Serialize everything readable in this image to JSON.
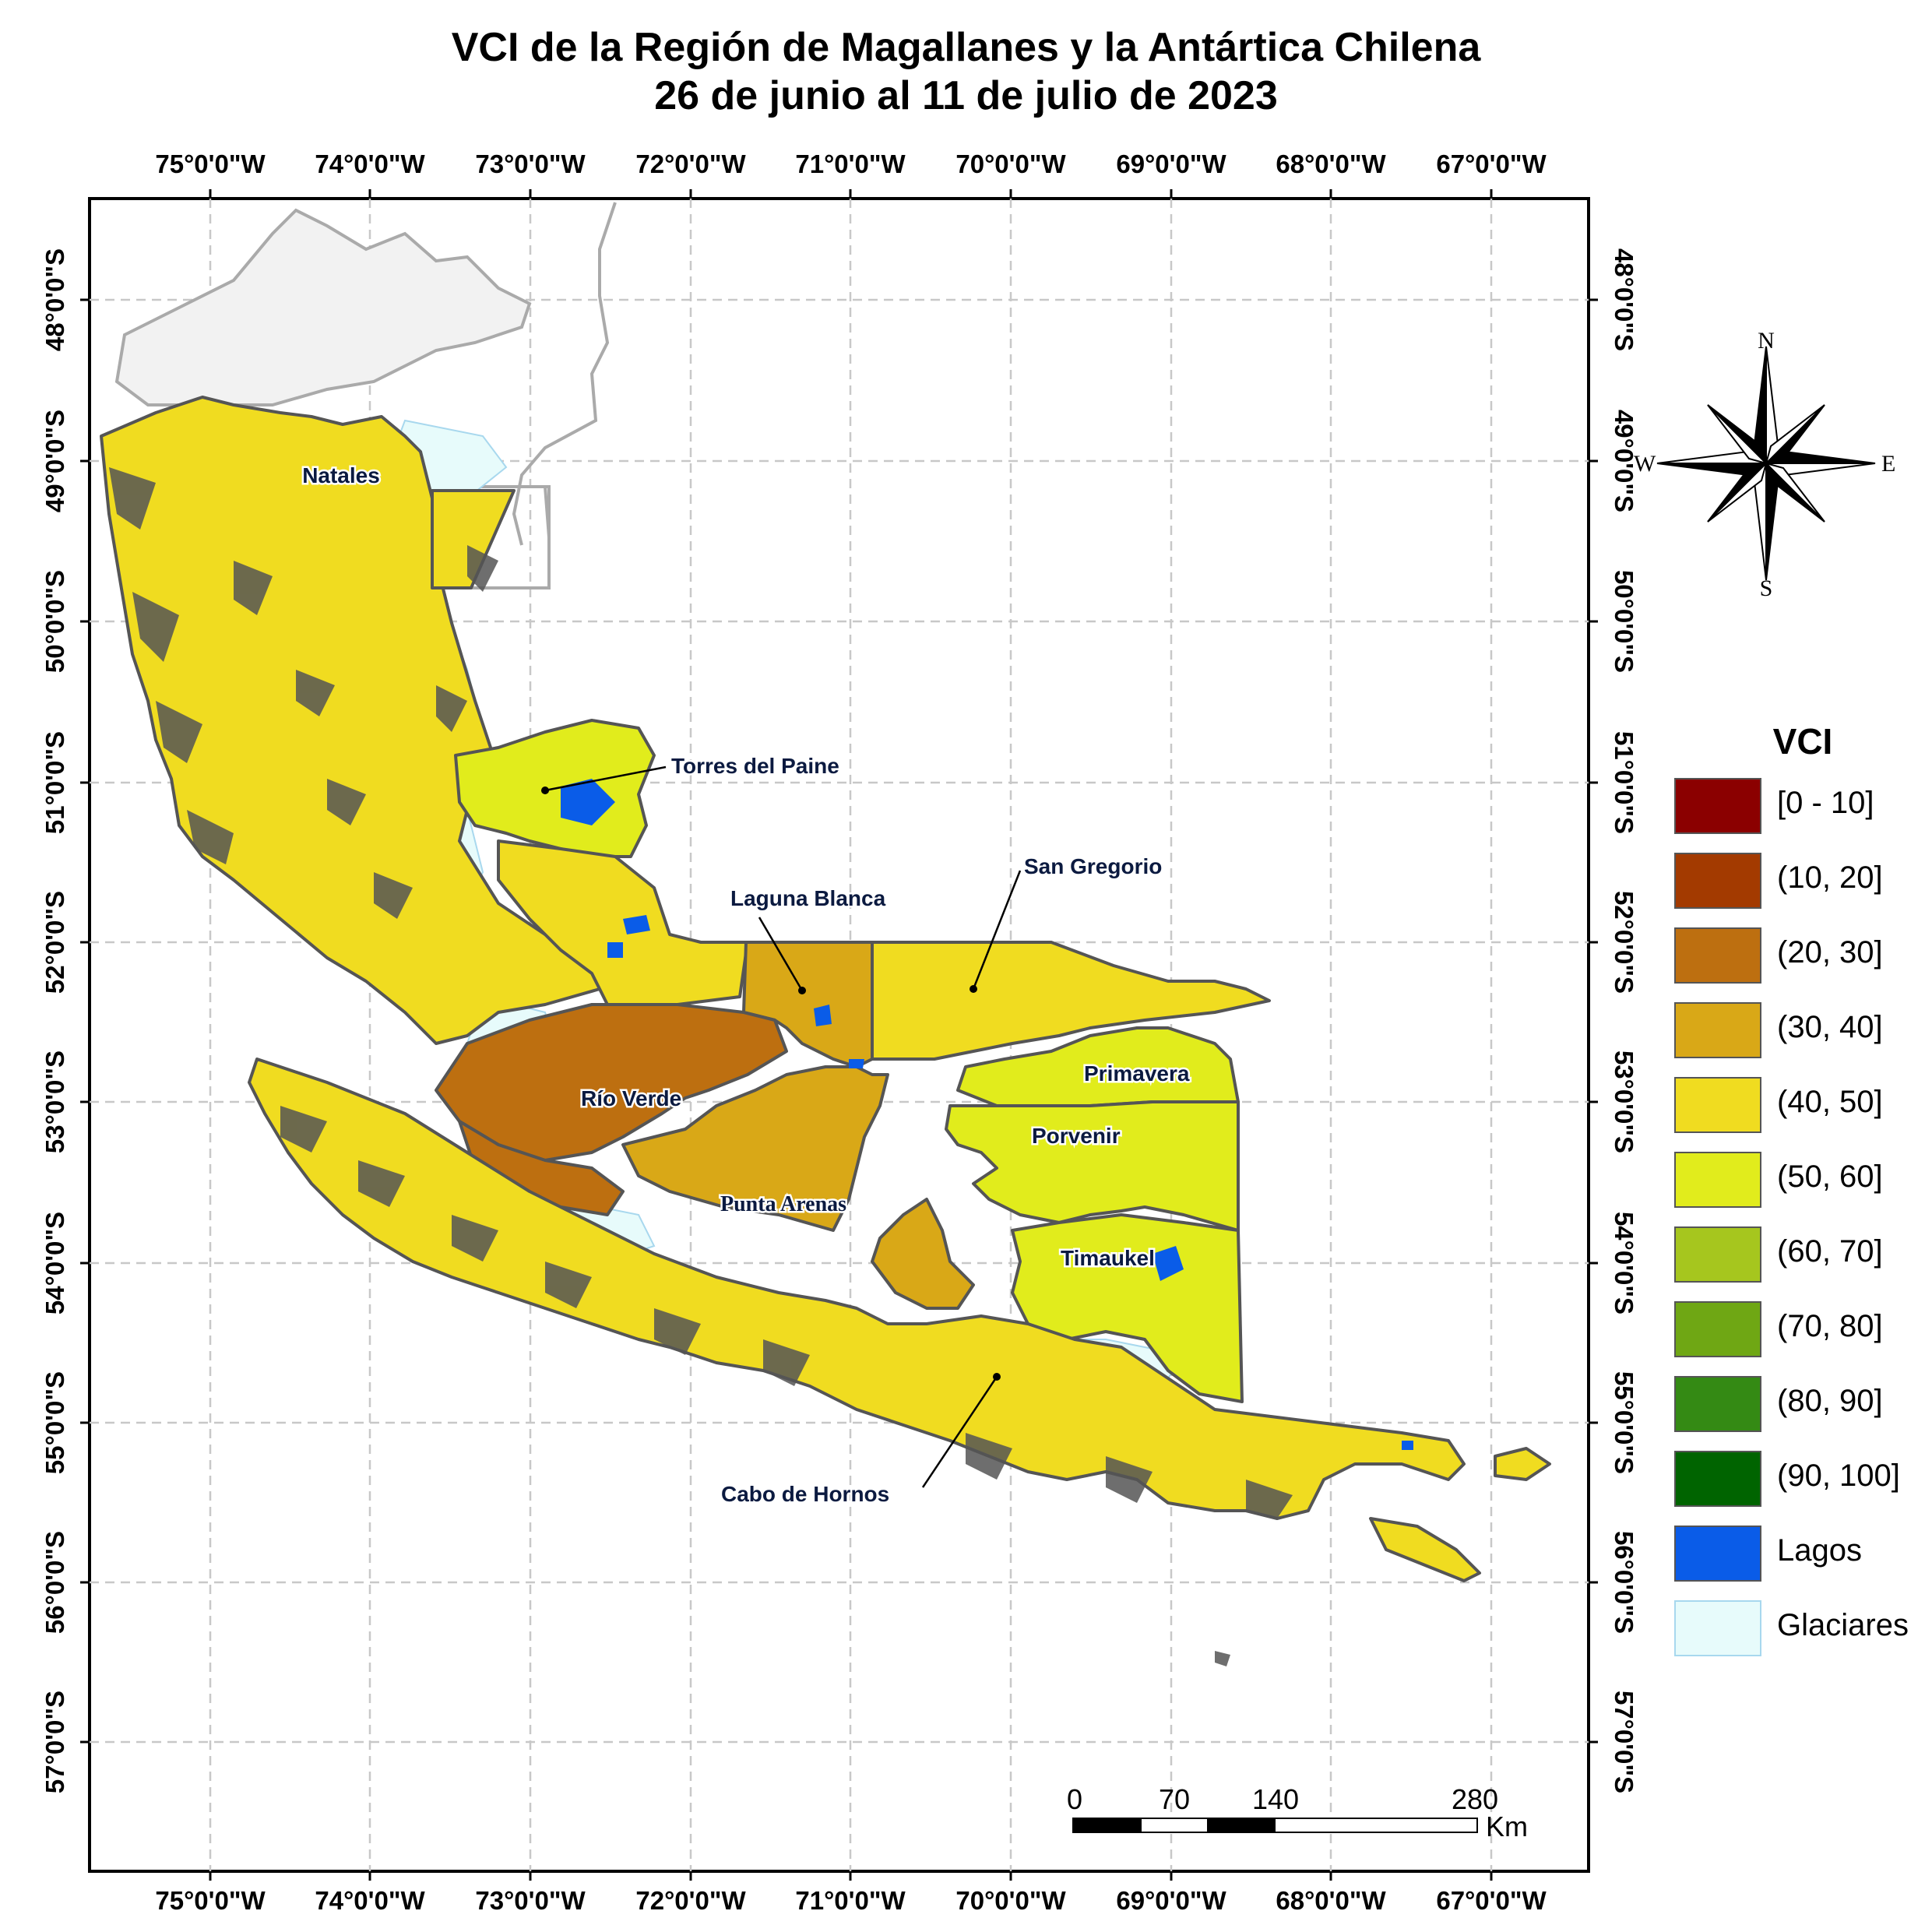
{
  "title": {
    "line1": "VCI de la Región de Magallanes y la Antártica Chilena",
    "line2": "26 de junio al 11 de julio de 2023"
  },
  "axes": {
    "longitude_labels": [
      "75°0'0\"W",
      "74°0'0\"W",
      "73°0'0\"W",
      "72°0'0\"W",
      "71°0'0\"W",
      "70°0'0\"W",
      "69°0'0\"W",
      "68°0'0\"W",
      "67°0'0\"W"
    ],
    "latitude_labels": [
      "48°0'0\"S",
      "49°0'0\"S",
      "50°0'0\"S",
      "51°0'0\"S",
      "52°0'0\"S",
      "53°0'0\"S",
      "54°0'0\"S",
      "55°0'0\"S",
      "56°0'0\"S",
      "57°0'0\"S"
    ],
    "gridlines": "dashed"
  },
  "places": {
    "natales": "Natales",
    "torres": "Torres del Paine",
    "laguna": "Laguna Blanca",
    "sangregorio": "San Gregorio",
    "primavera": "Primavera",
    "rioverde": "Río Verde",
    "porvenir": "Porvenir",
    "puntaarenas": "Punta Arenas",
    "timaukel": "Timaukel",
    "cabo": "Cabo de Hornos"
  },
  "compass": {
    "n": "N",
    "s": "S",
    "e": "E",
    "w": "W"
  },
  "scale_bar": {
    "labels": [
      "0",
      "70",
      "140",
      "280"
    ],
    "unit": "Km"
  },
  "legend": {
    "title": "VCI",
    "items": [
      {
        "label": "[0 - 10]",
        "color": "#8b0000"
      },
      {
        "label": "(10, 20]",
        "color": "#a33a00"
      },
      {
        "label": "(20, 30]",
        "color": "#bd6f10"
      },
      {
        "label": "(30, 40]",
        "color": "#d9a817"
      },
      {
        "label": "(40, 50]",
        "color": "#f0dc20"
      },
      {
        "label": "(50, 60]",
        "color": "#e1ec1c"
      },
      {
        "label": "(60, 70]",
        "color": "#a6c61e"
      },
      {
        "label": "(70, 80]",
        "color": "#6fa714"
      },
      {
        "label": "(80, 90]",
        "color": "#348a14"
      },
      {
        "label": "(90, 100]",
        "color": "#006400"
      },
      {
        "label": "Lagos",
        "color": "#0a5ce8"
      },
      {
        "label": "Glaciares",
        "color": "#e7fbfb"
      }
    ]
  },
  "map_values": {
    "Natales": "(40, 50]",
    "Torres del Paine": "(50, 60]",
    "Laguna Blanca": "(30, 40]",
    "San Gregorio": "(40, 50]",
    "Río Verde": "(20, 30]",
    "Punta Arenas": "(30, 40]",
    "Primavera": "(50, 60]",
    "Porvenir": "(50, 60]",
    "Timaukel": "(50, 60]",
    "Cabo de Hornos": "(40, 50]"
  }
}
